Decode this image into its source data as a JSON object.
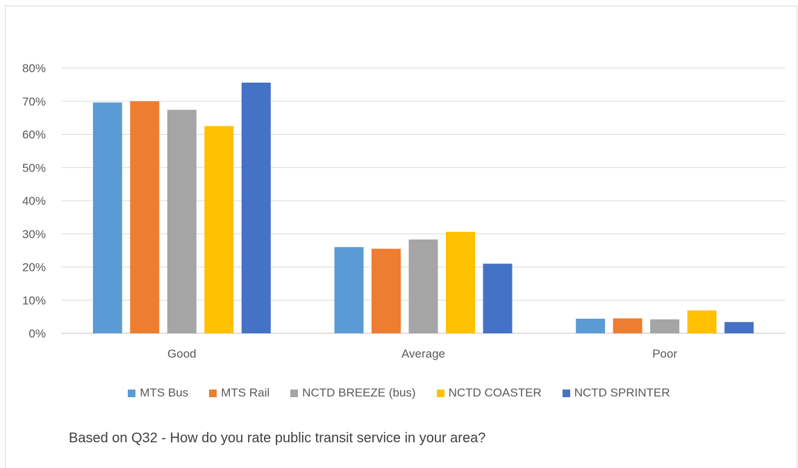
{
  "chart_data": {
    "type": "bar",
    "title": "",
    "xlabel": "",
    "ylabel": "",
    "categories": [
      "Good",
      "Average",
      "Poor"
    ],
    "yticks": [
      "0%",
      "10%",
      "20%",
      "30%",
      "40%",
      "50%",
      "60%",
      "70%",
      "80%"
    ],
    "ylim": [
      0,
      80
    ],
    "grid": true,
    "legend_position": "bottom",
    "series": [
      {
        "name": "MTS Bus",
        "color": "#5B9BD5",
        "values": [
          69.6,
          26.0,
          4.4
        ]
      },
      {
        "name": "MTS Rail",
        "color": "#ED7D31",
        "values": [
          70.0,
          25.5,
          4.5
        ]
      },
      {
        "name": "NCTD BREEZE (bus)",
        "color": "#A5A5A5",
        "values": [
          67.4,
          28.3,
          4.2
        ]
      },
      {
        "name": "NCTD COASTER",
        "color": "#FFC000",
        "values": [
          62.5,
          30.6,
          6.9
        ]
      },
      {
        "name": "NCTD SPRINTER",
        "color": "#4472C4",
        "values": [
          75.6,
          21.0,
          3.4
        ]
      }
    ]
  },
  "caption": "Based on Q32 - How do you rate public transit service in your area?"
}
